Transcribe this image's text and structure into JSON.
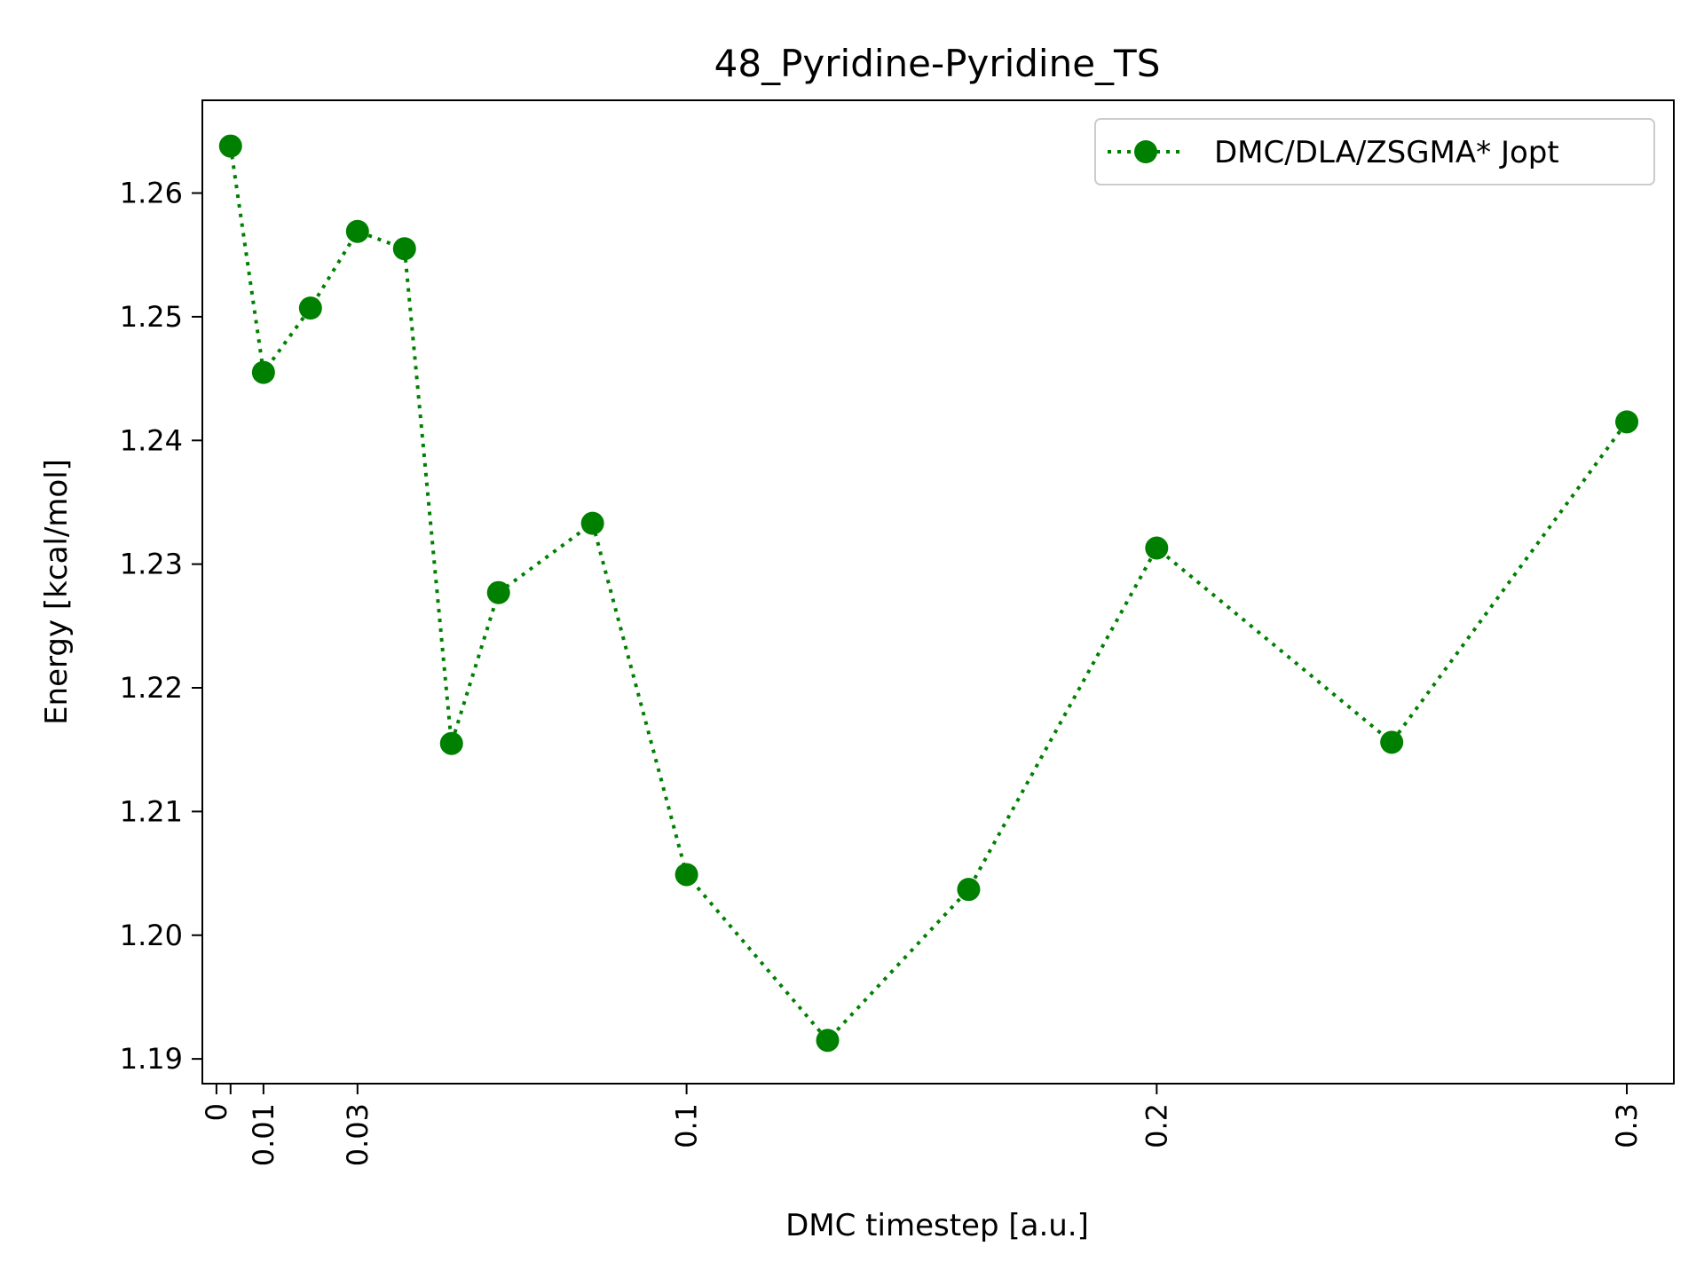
{
  "chart_data": {
    "type": "line",
    "title": "48_Pyridine-Pyridine_TS",
    "xlabel": "DMC timestep [a.u.]",
    "ylabel": "Energy [kcal/mol]",
    "xlim": [
      -0.003,
      0.31
    ],
    "ylim": [
      1.188,
      1.2675
    ],
    "xticks": [
      {
        "value": 0,
        "label": "0"
      },
      {
        "value": 0.003,
        "label": ""
      },
      {
        "value": 0.01,
        "label": "0.01"
      },
      {
        "value": 0.03,
        "label": "0.03"
      },
      {
        "value": 0.1,
        "label": "0.1"
      },
      {
        "value": 0.2,
        "label": "0.2"
      },
      {
        "value": 0.3,
        "label": "0.3"
      }
    ],
    "yticks": [
      {
        "value": 1.19,
        "label": "1.19"
      },
      {
        "value": 1.2,
        "label": "1.20"
      },
      {
        "value": 1.21,
        "label": "1.21"
      },
      {
        "value": 1.22,
        "label": "1.22"
      },
      {
        "value": 1.23,
        "label": "1.23"
      },
      {
        "value": 1.24,
        "label": "1.24"
      },
      {
        "value": 1.25,
        "label": "1.25"
      },
      {
        "value": 1.26,
        "label": "1.26"
      }
    ],
    "grid": false,
    "legend_position": "top-right",
    "series": [
      {
        "name": "DMC/DLA/ZSGMA* Jopt",
        "color": "#008000",
        "line_style": "dotted",
        "marker": "circle",
        "x": [
          0.003,
          0.01,
          0.02,
          0.03,
          0.04,
          0.05,
          0.06,
          0.08,
          0.1,
          0.13,
          0.16,
          0.2,
          0.25,
          0.3
        ],
        "y": [
          1.2638,
          1.2455,
          1.2507,
          1.2569,
          1.2555,
          1.2155,
          1.2277,
          1.2333,
          1.2049,
          1.1915,
          1.2037,
          1.2313,
          1.2156,
          1.2415
        ]
      }
    ]
  }
}
